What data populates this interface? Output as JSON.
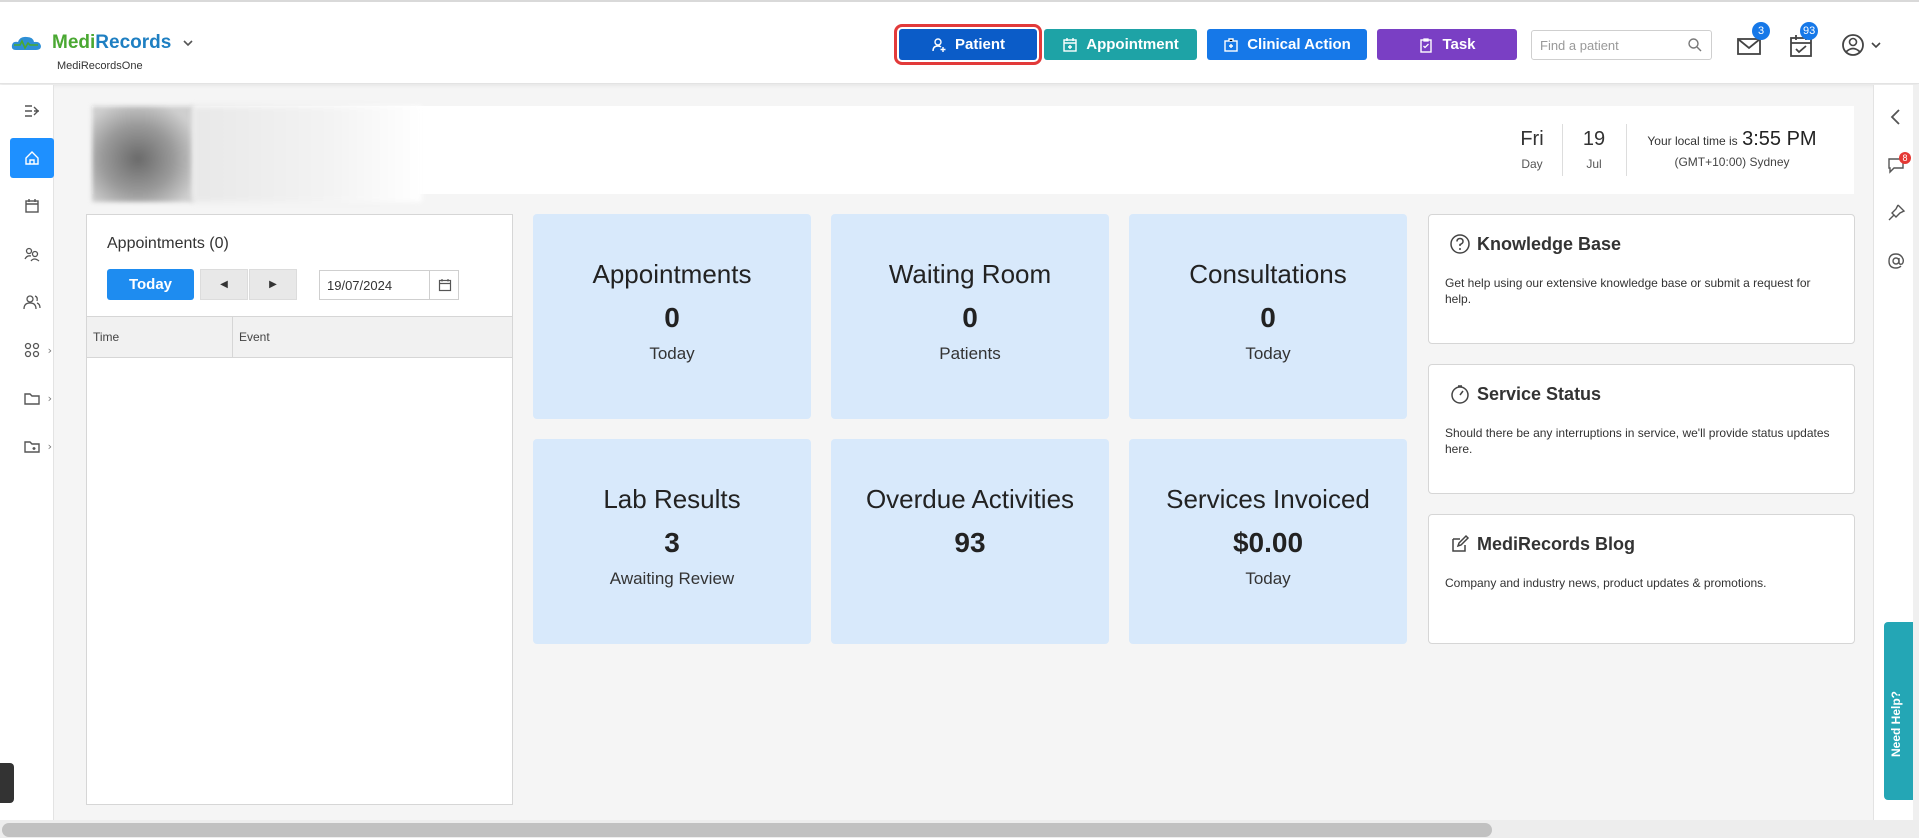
{
  "brand": {
    "name_part1": "Medi",
    "name_part2": "Records",
    "subtitle": "MediRecordsOne"
  },
  "header": {
    "buttons": {
      "patient": "Patient",
      "appointment": "Appointment",
      "clinical_action": "Clinical Action",
      "task": "Task"
    },
    "search_placeholder": "Find a patient",
    "mail_count": "3",
    "tasks_count": "93"
  },
  "profile": {
    "day": "Fri",
    "day_label": "Day",
    "date": "19",
    "month": "Jul",
    "local_time_label": "Your local time is",
    "local_time": "3:55 PM",
    "timezone": "(GMT+10:00) Sydney"
  },
  "appointments_panel": {
    "title": "Appointments (0)",
    "today_button": "Today",
    "date_value": "19/07/2024",
    "columns": [
      "Time",
      "Event"
    ]
  },
  "cards": [
    {
      "title": "Appointments",
      "value": "0",
      "sub": "Today"
    },
    {
      "title": "Waiting Room",
      "value": "0",
      "sub": "Patients"
    },
    {
      "title": "Consultations",
      "value": "0",
      "sub": "Today"
    },
    {
      "title": "Lab Results",
      "value": "3",
      "sub": "Awaiting Review"
    },
    {
      "title": "Overdue Activities",
      "value": "93",
      "sub": ""
    },
    {
      "title": "Services Invoiced",
      "value": "$0.00",
      "sub": "Today"
    }
  ],
  "info_panels": [
    {
      "title": "Knowledge Base",
      "desc": "Get help using our extensive knowledge base or submit a request for help.",
      "icon": "question-icon"
    },
    {
      "title": "Service Status",
      "desc": "Should there be any interruptions in service, we'll provide status updates here.",
      "icon": "gauge-icon"
    },
    {
      "title": "MediRecords Blog",
      "desc": "Company and industry news, product updates & promotions.",
      "icon": "edit-icon"
    }
  ],
  "right_rail": {
    "notification_count": "8",
    "help_tab": "Need Help?"
  },
  "colors": {
    "patient_btn": "#0b5cc8",
    "appointment_btn": "#1ea3a6",
    "clinical_btn": "#1678e8",
    "task_btn": "#7a3fc4",
    "card_bg": "#d8e9fb",
    "highlight": "#e23a3a"
  }
}
